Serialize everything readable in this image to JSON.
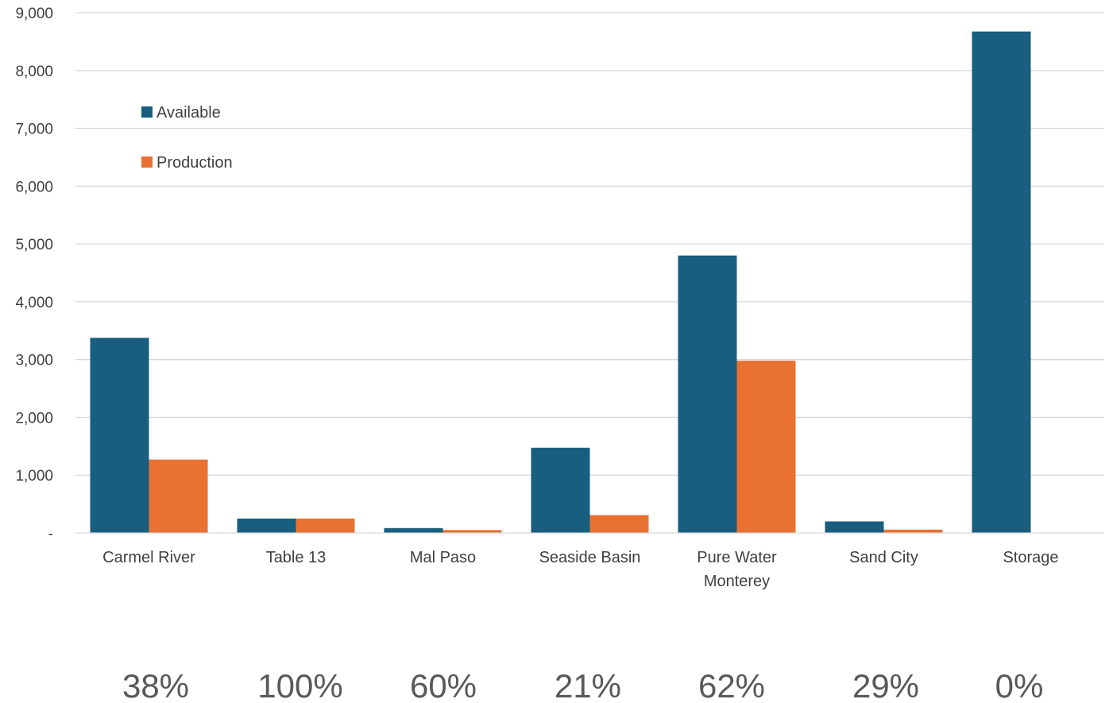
{
  "chart_data": {
    "type": "bar",
    "categories": [
      "Carmel River",
      "Table 13",
      "Mal Paso",
      "Seaside Basin",
      "Pure Water Monterey",
      "Sand City",
      "Storage"
    ],
    "category_lines": [
      [
        "Carmel River"
      ],
      [
        "Table 13"
      ],
      [
        "Mal Paso"
      ],
      [
        "Seaside Basin"
      ],
      [
        "Pure Water",
        "Monterey"
      ],
      [
        "Sand City"
      ],
      [
        "Storage"
      ]
    ],
    "series": [
      {
        "name": "Available",
        "color": "#175E7F",
        "values": [
          3376,
          250,
          85,
          1474,
          4800,
          200,
          8675
        ]
      },
      {
        "name": "Production",
        "color": "#E97132",
        "values": [
          1270,
          250,
          51,
          310,
          2980,
          58,
          0
        ]
      }
    ],
    "ylim": [
      0,
      9000
    ],
    "y_ticks": [
      0,
      1000,
      2000,
      3000,
      4000,
      5000,
      6000,
      7000,
      8000,
      9000
    ],
    "y_tick_labels": [
      "-",
      "1,000",
      "2,000",
      "3,000",
      "4,000",
      "5,000",
      "6,000",
      "7,000",
      "8,000",
      "9,000"
    ],
    "grid": true,
    "legend_position": "top-left",
    "percent_labels": [
      "38%",
      "100%",
      "60%",
      "21%",
      "62%",
      "29%",
      "0%"
    ]
  }
}
